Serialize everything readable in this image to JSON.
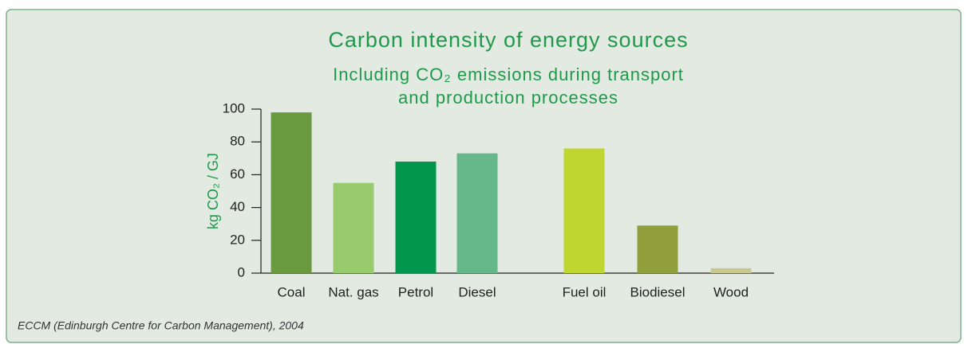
{
  "chart_data": {
    "type": "bar",
    "title": "Carbon intensity of energy sources",
    "subtitle": [
      "Including CO₂ emissions during transport",
      "and production processes"
    ],
    "ylabel": "kg CO₂ / GJ",
    "categories": [
      "Coal",
      "Nat. gas",
      "Petrol",
      "Diesel",
      "Fuel oil",
      "Biodiesel",
      "Wood"
    ],
    "values": [
      98,
      55,
      68,
      73,
      76,
      29,
      3
    ],
    "colors": [
      "#6a9a40",
      "#97cb6c",
      "#00964b",
      "#66b78a",
      "#bfd630",
      "#909e3c",
      "#c8c890"
    ],
    "ylim": [
      0,
      100
    ],
    "yticks": [
      0,
      20,
      40,
      60,
      80,
      100
    ],
    "grid": false,
    "source": "ECCM (Edinburgh Centre for Carbon Management), 2004"
  }
}
